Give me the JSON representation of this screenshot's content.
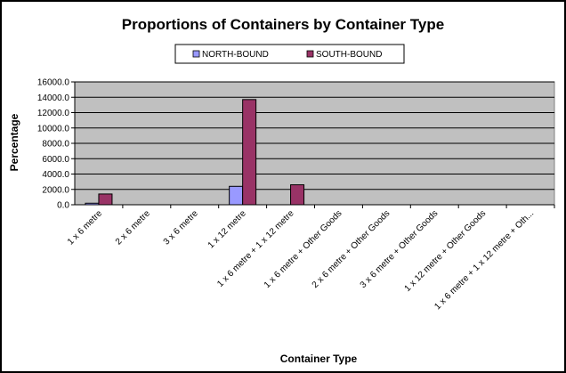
{
  "chart_data": {
    "type": "bar",
    "title": "Proportions of Containers by Container Type",
    "xlabel": "Container Type",
    "ylabel": "Percentage",
    "ylim": [
      0,
      16000
    ],
    "y_ticks": [
      "0.0",
      "2000.0",
      "4000.0",
      "6000.0",
      "8000.0",
      "10000.0",
      "12000.0",
      "14000.0",
      "16000.0"
    ],
    "grid": true,
    "legend_position": "top",
    "plot_background": "#c0c0c0",
    "categories": [
      "1 x 6 metre",
      "2 x 6 metre",
      "3 x 6 metre",
      "1 x 12 metre",
      "1 x 6 metre + 1 x 12 metre",
      "1 x 6 metre + Other Goods",
      "2 x 6 metre + Other Goods",
      "3 x 6 metre + Other Goods",
      "1 x 12 metre + Other Goods",
      "1 x 6 metre + 1 x 12 metre + Oth..."
    ],
    "series": [
      {
        "name": "NORTH-BOUND",
        "color": "#9999ff",
        "values": [
          200,
          0,
          0,
          2400,
          0,
          0,
          0,
          0,
          0,
          0
        ]
      },
      {
        "name": "SOUTH-BOUND",
        "color": "#993366",
        "values": [
          1400,
          0,
          0,
          13700,
          2600,
          0,
          0,
          0,
          0,
          0
        ]
      }
    ]
  }
}
